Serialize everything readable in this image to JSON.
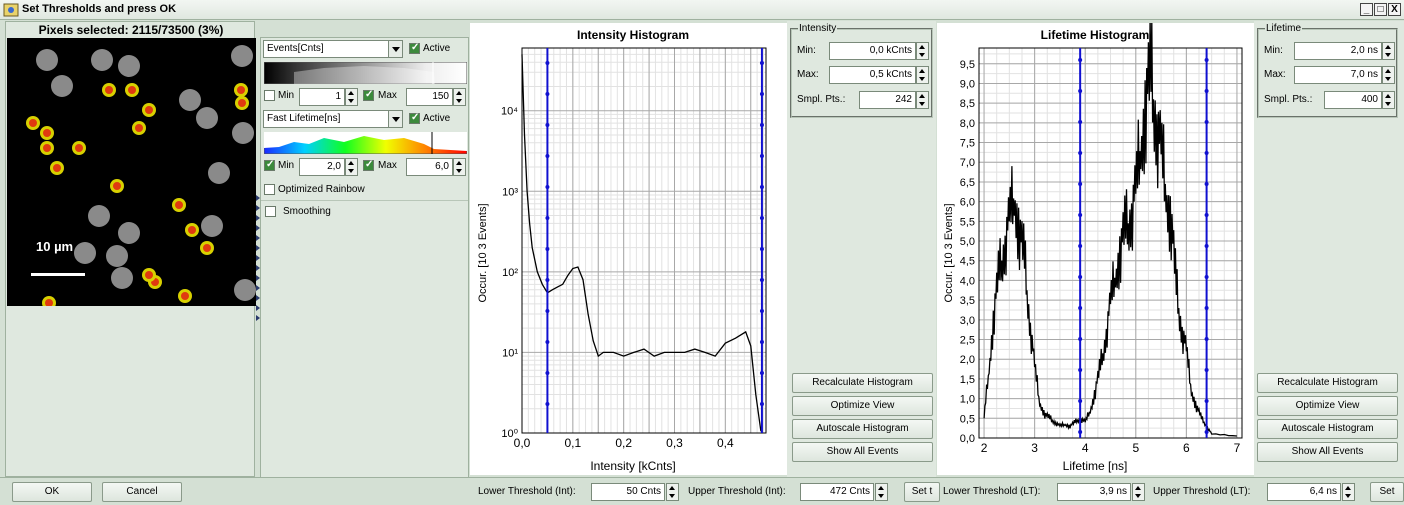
{
  "window": {
    "title": "Set Thresholds and press OK",
    "min": "_",
    "max": "□",
    "close": "X"
  },
  "image_panel": {
    "header": "Pixels selected: 2115/73500 (3%)",
    "scalebar": "10 µm"
  },
  "events": {
    "select": "Events[Cnts]",
    "active": "Active",
    "min_label": "Min",
    "min_value": "1",
    "max_label": "Max",
    "max_value": "150"
  },
  "lifetime_ctrl": {
    "select": "Fast Lifetime[ns]",
    "active": "Active",
    "min_label": "Min",
    "min_value": "2,0",
    "max_label": "Max",
    "max_value": "6,0",
    "opt_rainbow": "Optimized Rainbow",
    "smoothing": "Smoothing"
  },
  "int_hist": {
    "title": "Intensity Histogram",
    "xlabel": "Intensity [kCnts]",
    "ylabel": "Occur. [10  3 Events]",
    "xticks": [
      "0,0",
      "0,1",
      "0,2",
      "0,3",
      "0,4"
    ],
    "yticks": [
      "10⁰",
      "10¹",
      "10²",
      "10³",
      "10⁴"
    ]
  },
  "lt_hist": {
    "title": "Lifetime Histogram",
    "xlabel": "Lifetime [ns]",
    "ylabel": "Occur. [10  3 Events]",
    "xticks": [
      "2",
      "3",
      "4",
      "5",
      "6",
      "7"
    ],
    "yticks": [
      "0,0",
      "0,5",
      "1,0",
      "1,5",
      "2,0",
      "2,5",
      "3,0",
      "3,5",
      "4,0",
      "4,5",
      "5,0",
      "5,5",
      "6,0",
      "6,5",
      "7,0",
      "7,5",
      "8,0",
      "8,5",
      "9,0",
      "9,5"
    ]
  },
  "int_group": {
    "title": "Intensity",
    "min_label": "Min:",
    "min_value": "0,0 kCnts",
    "max_label": "Max:",
    "max_value": "0,5 kCnts",
    "pts_label": "Smpl. Pts.:",
    "pts_value": "242"
  },
  "lt_group": {
    "title": "Lifetime",
    "min_label": "Min:",
    "min_value": "2,0 ns",
    "max_label": "Max:",
    "max_value": "7,0 ns",
    "pts_label": "Smpl. Pts.:",
    "pts_value": "400"
  },
  "buttons": {
    "recalc": "Recalculate Histogram",
    "optimize": "Optimize View",
    "autoscale": "Autoscale Histogram",
    "show_all": "Show All Events",
    "ok": "OK",
    "cancel": "Cancel",
    "set": "Set t",
    "set2": "Set"
  },
  "thresholds": {
    "lower_int_label": "Lower Threshold (Int):",
    "lower_int_value": "50 Cnts",
    "upper_int_label": "Upper Threshold (Int):",
    "upper_int_value": "472 Cnts",
    "lower_lt_label": "Lower Threshold (LT):",
    "lower_lt_value": "3,9 ns",
    "upper_lt_label": "Upper Threshold (LT):",
    "upper_lt_value": "6,4 ns"
  },
  "chart_data": [
    {
      "type": "line",
      "title": "Intensity Histogram",
      "xlabel": "Intensity [kCnts]",
      "ylabel": "Occur. [10  3 Events]",
      "xlim": [
        0,
        0.48
      ],
      "ylim": [
        1,
        60000
      ],
      "yscale": "log",
      "x": [
        0.0,
        0.005,
        0.01,
        0.015,
        0.02,
        0.03,
        0.04,
        0.05,
        0.06,
        0.07,
        0.08,
        0.09,
        0.1,
        0.11,
        0.12,
        0.13,
        0.14,
        0.15,
        0.16,
        0.18,
        0.2,
        0.22,
        0.24,
        0.26,
        0.28,
        0.3,
        0.32,
        0.34,
        0.36,
        0.38,
        0.4,
        0.42,
        0.44,
        0.45,
        0.46,
        0.47
      ],
      "y": [
        50000,
        5000,
        1000,
        400,
        200,
        100,
        70,
        55,
        60,
        65,
        70,
        90,
        110,
        115,
        80,
        30,
        14,
        9,
        10,
        10,
        9,
        10,
        11,
        9,
        10,
        10,
        10,
        11,
        10,
        9,
        13,
        15,
        18,
        12,
        3,
        1
      ],
      "thresholds": [
        0.05,
        0.472
      ]
    },
    {
      "type": "line",
      "title": "Lifetime Histogram",
      "xlabel": "Lifetime [ns]",
      "ylabel": "Occur. [10  3 Events]",
      "xlim": [
        1.9,
        7.1
      ],
      "ylim": [
        0,
        9.9
      ],
      "x": [
        2.0,
        2.1,
        2.2,
        2.3,
        2.4,
        2.5,
        2.6,
        2.7,
        2.8,
        2.9,
        3.0,
        3.1,
        3.2,
        3.3,
        3.4,
        3.5,
        3.6,
        3.7,
        3.8,
        3.9,
        4.0,
        4.1,
        4.2,
        4.3,
        4.4,
        4.5,
        4.6,
        4.7,
        4.8,
        4.9,
        5.0,
        5.1,
        5.2,
        5.3,
        5.4,
        5.5,
        5.6,
        5.7,
        5.8,
        5.9,
        6.0,
        6.1,
        6.2,
        6.3,
        6.4,
        6.5,
        7.0
      ],
      "y": [
        0.5,
        1.8,
        3.2,
        4.2,
        4.8,
        5.5,
        6.2,
        5.2,
        4.5,
        3.0,
        1.8,
        0.9,
        0.6,
        0.5,
        0.4,
        0.3,
        0.35,
        0.3,
        0.4,
        0.5,
        0.4,
        0.7,
        1.2,
        1.8,
        2.5,
        3.4,
        4.2,
        4.8,
        5.3,
        5.6,
        6.2,
        7.5,
        8.5,
        9.2,
        8.0,
        7.2,
        6.3,
        5.5,
        3.8,
        2.8,
        2.2,
        1.2,
        0.8,
        0.5,
        0.3,
        0.1,
        0.05
      ],
      "thresholds": [
        3.9,
        6.4
      ]
    }
  ]
}
